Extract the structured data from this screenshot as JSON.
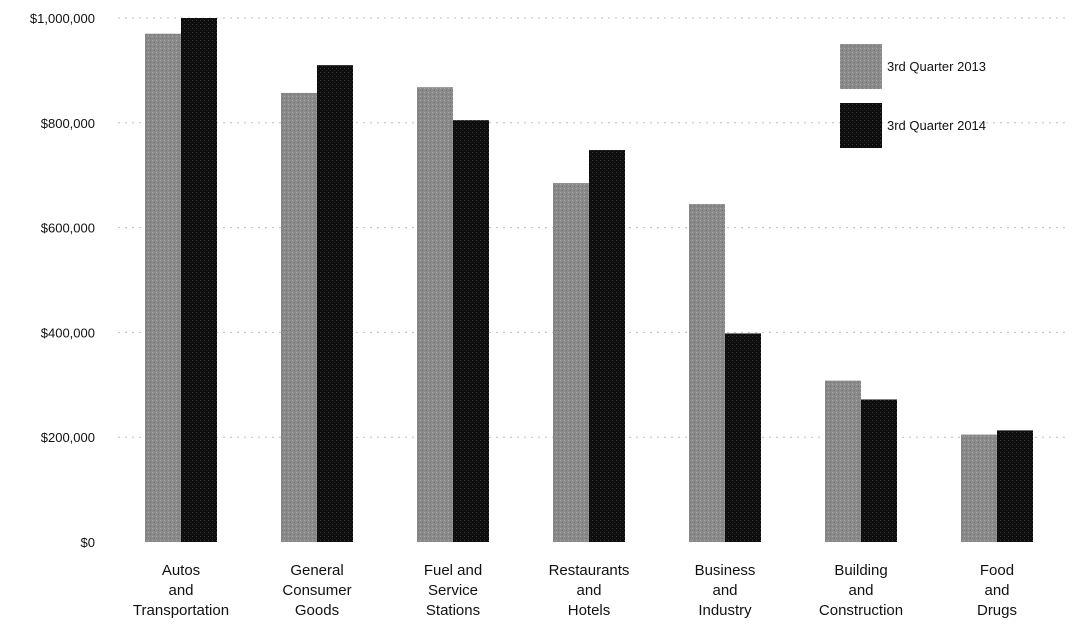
{
  "chart_data": {
    "type": "bar",
    "title": "",
    "xlabel": "",
    "ylabel": "",
    "ylim": [
      0,
      1000000
    ],
    "yticks": [
      {
        "value": 0,
        "label": "$0"
      },
      {
        "value": 200000,
        "label": "$200,000"
      },
      {
        "value": 400000,
        "label": "$400,000"
      },
      {
        "value": 600000,
        "label": "$600,000"
      },
      {
        "value": 800000,
        "label": "$800,000"
      },
      {
        "value": 1000000,
        "label": "$1,000,000"
      }
    ],
    "categories": [
      [
        "Autos",
        "and",
        "Transportation"
      ],
      [
        "General",
        "Consumer",
        "Goods"
      ],
      [
        "Fuel and",
        "Service",
        "Stations"
      ],
      [
        "Restaurants",
        "and",
        "Hotels"
      ],
      [
        "Business",
        "and",
        "Industry"
      ],
      [
        "Building",
        "and",
        "Construction"
      ],
      [
        "Food",
        "and",
        "Drugs"
      ]
    ],
    "series": [
      {
        "name": "3rd Quarter 2013",
        "color": "#8a8a8a",
        "values": [
          970000,
          857000,
          868000,
          685000,
          645000,
          308000,
          205000
        ]
      },
      {
        "name": "3rd Quarter 2014",
        "color": "#0d0d0d",
        "values": [
          1000000,
          910000,
          805000,
          748000,
          398000,
          272000,
          213000
        ]
      }
    ],
    "grid": true,
    "legend_position": "top-right"
  }
}
